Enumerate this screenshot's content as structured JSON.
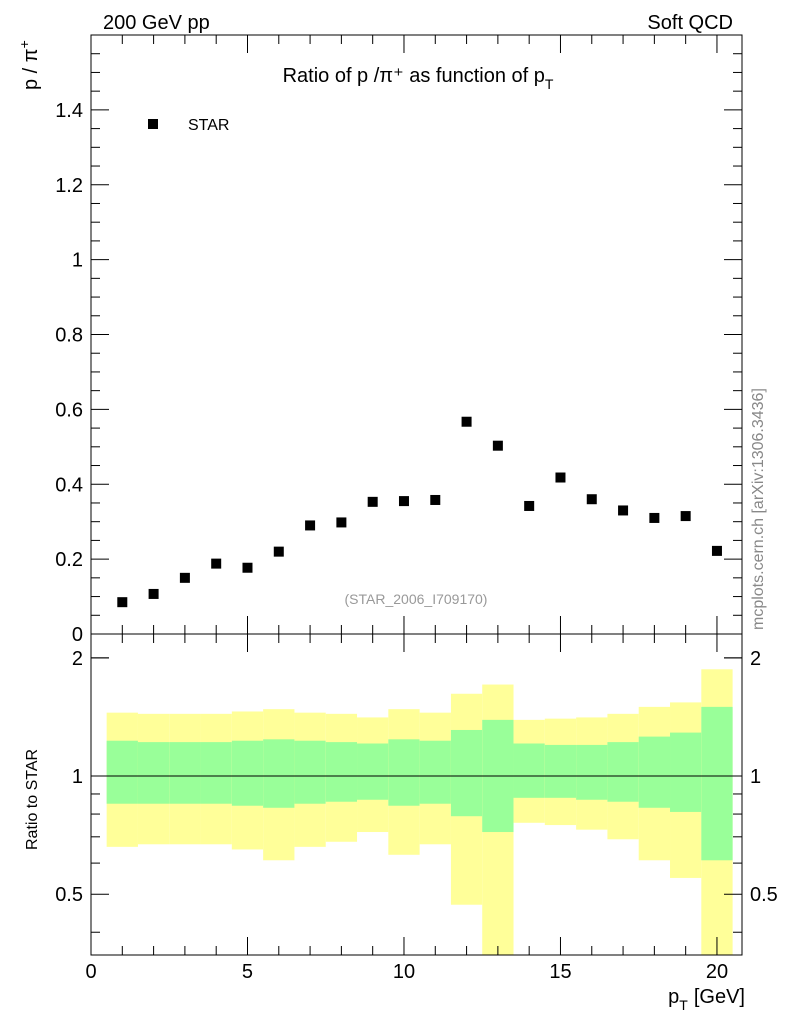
{
  "header": {
    "left": "200 GeV pp",
    "right": "Soft QCD"
  },
  "watermark": "mcplots.cern.ch [arXiv:1306.3436]",
  "colors": {
    "inner_band": "#99ff99",
    "outer_band": "#ffff99",
    "marker": "#000000",
    "ref_line": "#000000",
    "analysis_text": "#999999"
  },
  "chart_data": [
    {
      "type": "scatter",
      "panel": "main",
      "title": "Ratio of p /π⁺ as function of p",
      "title_sub": "T",
      "ylabel": "p / π",
      "ylabel_sup": "+",
      "xlim": [
        0,
        20.8
      ],
      "ylim": [
        0,
        1.6
      ],
      "yticks": [
        0,
        0.2,
        0.4,
        0.6,
        0.8,
        1,
        1.2,
        1.4
      ],
      "ytick_labels": [
        "0",
        "0.2",
        "0.4",
        "0.6",
        "0.8",
        "1",
        "1.2",
        "1.4"
      ],
      "legend": {
        "position": "top-left",
        "entries": [
          "STAR"
        ]
      },
      "analysis_label": "(STAR_2006_I709170)",
      "series": [
        {
          "name": "STAR",
          "x": [
            1,
            2,
            3,
            4,
            5,
            6,
            7,
            8,
            9,
            10,
            11,
            12,
            13,
            14,
            15,
            16,
            17,
            18,
            19,
            20
          ],
          "y": [
            0.085,
            0.107,
            0.15,
            0.188,
            0.177,
            0.22,
            0.29,
            0.298,
            0.353,
            0.355,
            0.358,
            0.567,
            0.503,
            0.342,
            0.418,
            0.36,
            0.33,
            0.31,
            0.315,
            0.222
          ]
        }
      ]
    },
    {
      "type": "area",
      "panel": "ratio",
      "ylabel": "Ratio to STAR",
      "xlabel": "p",
      "xlabel_sub": "T",
      "xlabel_unit": "[GeV]",
      "xlim": [
        0,
        20.8
      ],
      "ylim": [
        0.35,
        2.3
      ],
      "yticks": [
        0.5,
        1,
        2
      ],
      "ytick_labels": [
        "0.5",
        "1",
        "2"
      ],
      "xticks": [
        0,
        5,
        10,
        15,
        20
      ],
      "xtick_labels": [
        "0",
        "5",
        "10",
        "15",
        "20"
      ],
      "reference_line": 1,
      "bin_edges": [
        0.5,
        1.5,
        2.5,
        3.5,
        4.5,
        5.5,
        6.5,
        7.5,
        8.5,
        9.5,
        10.5,
        11.5,
        12.5,
        13.5,
        14.5,
        15.5,
        16.5,
        17.5,
        18.5,
        19.5,
        20.5
      ],
      "inner_band": {
        "low": [
          0.85,
          0.85,
          0.85,
          0.85,
          0.84,
          0.83,
          0.85,
          0.86,
          0.87,
          0.84,
          0.85,
          0.79,
          0.72,
          0.88,
          0.88,
          0.87,
          0.86,
          0.83,
          0.81,
          0.61
        ],
        "high": [
          1.23,
          1.22,
          1.22,
          1.22,
          1.23,
          1.24,
          1.23,
          1.22,
          1.21,
          1.24,
          1.23,
          1.31,
          1.39,
          1.21,
          1.2,
          1.2,
          1.22,
          1.26,
          1.29,
          1.5
        ]
      },
      "outer_band": {
        "low": [
          0.66,
          0.67,
          0.67,
          0.67,
          0.65,
          0.61,
          0.66,
          0.68,
          0.72,
          0.63,
          0.67,
          0.47,
          0.33,
          0.76,
          0.75,
          0.73,
          0.69,
          0.61,
          0.55,
          0.33
        ],
        "high": [
          1.45,
          1.44,
          1.44,
          1.44,
          1.46,
          1.48,
          1.45,
          1.44,
          1.41,
          1.48,
          1.45,
          1.62,
          1.71,
          1.39,
          1.4,
          1.41,
          1.44,
          1.5,
          1.54,
          1.87
        ]
      }
    }
  ]
}
